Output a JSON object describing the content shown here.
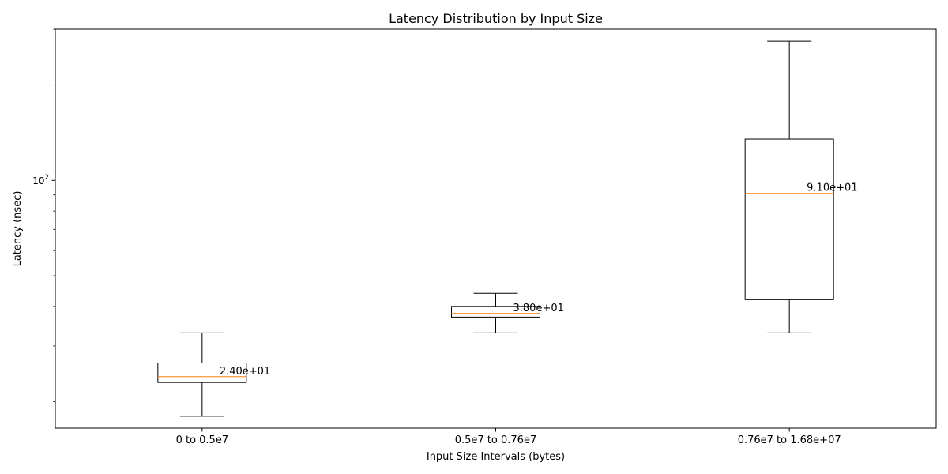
{
  "chart_data": {
    "type": "box",
    "title": "Latency Distribution by Input Size",
    "xlabel": "Input Size Intervals (bytes)",
    "ylabel": "Latency (nsec)",
    "yscale": "log",
    "ylim": [
      16.5,
      300
    ],
    "y_major_ticks": [
      {
        "value": 100,
        "base": "10",
        "exp": "2"
      }
    ],
    "y_minor_ticks": [
      20,
      30,
      40,
      50,
      60,
      70,
      80,
      90,
      200,
      300
    ],
    "categories": [
      "0 to 0.5e7",
      "0.5e7 to 0.76e7",
      "0.76e7 to 1.68e+07"
    ],
    "boxes": [
      {
        "whisker_low": 18,
        "q1": 23.0,
        "median": 24,
        "q3": 26.5,
        "whisker_high": 33,
        "median_label": "2.40e+01"
      },
      {
        "whisker_low": 33,
        "q1": 37.0,
        "median": 38,
        "q3": 40.0,
        "whisker_high": 44,
        "median_label": "3.80e+01"
      },
      {
        "whisker_low": 33,
        "q1": 42.0,
        "median": 91,
        "q3": 135,
        "whisker_high": 275,
        "median_label": "9.10e+01"
      }
    ],
    "colors": {
      "box": "#000000",
      "median": "#ff7f0e",
      "background": "#ffffff"
    },
    "grid": false
  }
}
